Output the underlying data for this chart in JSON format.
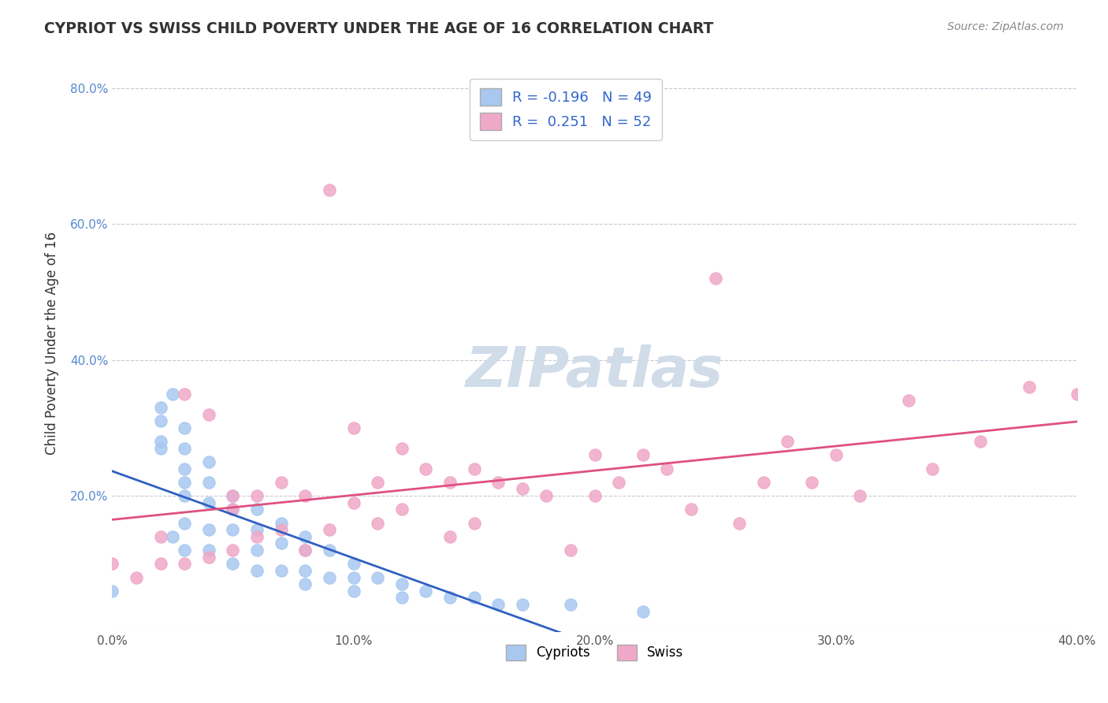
{
  "title": "CYPRIOT VS SWISS CHILD POVERTY UNDER THE AGE OF 16 CORRELATION CHART",
  "source": "Source: ZipAtlas.com",
  "xlabel": "",
  "ylabel": "Child Poverty Under the Age of 16",
  "xlim": [
    0.0,
    0.4
  ],
  "ylim": [
    0.0,
    0.85
  ],
  "x_ticks": [
    0.0,
    0.1,
    0.2,
    0.3,
    0.4
  ],
  "x_tick_labels": [
    "0.0%",
    "10.0%",
    "20.0%",
    "30.0%",
    "40.0%"
  ],
  "y_ticks": [
    0.0,
    0.2,
    0.4,
    0.6,
    0.8
  ],
  "y_tick_labels": [
    "",
    "20.0%",
    "40.0%",
    "60.0%",
    "80.0%"
  ],
  "r_cypriot": -0.196,
  "n_cypriot": 49,
  "r_swiss": 0.251,
  "n_swiss": 52,
  "cypriot_color": "#a8c8f0",
  "swiss_color": "#f0a8c8",
  "cypriot_line_color": "#3060c0",
  "swiss_line_color": "#e05080",
  "background_color": "#ffffff",
  "grid_color": "#c8c8d8",
  "watermark_color": "#d0dce8",
  "cypriot_x": [
    0.0,
    0.02,
    0.02,
    0.02,
    0.02,
    0.025,
    0.025,
    0.03,
    0.03,
    0.03,
    0.03,
    0.03,
    0.03,
    0.03,
    0.04,
    0.04,
    0.04,
    0.04,
    0.04,
    0.05,
    0.05,
    0.05,
    0.05,
    0.06,
    0.06,
    0.06,
    0.06,
    0.07,
    0.07,
    0.07,
    0.08,
    0.08,
    0.08,
    0.08,
    0.09,
    0.09,
    0.1,
    0.1,
    0.1,
    0.11,
    0.12,
    0.12,
    0.13,
    0.14,
    0.15,
    0.16,
    0.17,
    0.19,
    0.22
  ],
  "cypriot_y": [
    0.06,
    0.33,
    0.31,
    0.28,
    0.27,
    0.35,
    0.14,
    0.3,
    0.27,
    0.24,
    0.22,
    0.2,
    0.16,
    0.12,
    0.25,
    0.22,
    0.19,
    0.15,
    0.12,
    0.2,
    0.18,
    0.15,
    0.1,
    0.18,
    0.15,
    0.12,
    0.09,
    0.16,
    0.13,
    0.09,
    0.14,
    0.12,
    0.09,
    0.07,
    0.12,
    0.08,
    0.1,
    0.08,
    0.06,
    0.08,
    0.07,
    0.05,
    0.06,
    0.05,
    0.05,
    0.04,
    0.04,
    0.04,
    0.03
  ],
  "swiss_x": [
    0.0,
    0.01,
    0.02,
    0.02,
    0.03,
    0.03,
    0.04,
    0.04,
    0.05,
    0.05,
    0.05,
    0.06,
    0.06,
    0.07,
    0.07,
    0.08,
    0.08,
    0.09,
    0.09,
    0.1,
    0.1,
    0.11,
    0.11,
    0.12,
    0.12,
    0.13,
    0.14,
    0.14,
    0.15,
    0.15,
    0.16,
    0.17,
    0.18,
    0.19,
    0.2,
    0.2,
    0.21,
    0.22,
    0.23,
    0.24,
    0.25,
    0.26,
    0.27,
    0.28,
    0.29,
    0.3,
    0.31,
    0.33,
    0.34,
    0.36,
    0.38,
    0.4
  ],
  "swiss_y": [
    0.1,
    0.08,
    0.14,
    0.1,
    0.35,
    0.1,
    0.32,
    0.11,
    0.2,
    0.18,
    0.12,
    0.2,
    0.14,
    0.22,
    0.15,
    0.2,
    0.12,
    0.65,
    0.15,
    0.3,
    0.19,
    0.22,
    0.16,
    0.27,
    0.18,
    0.24,
    0.22,
    0.14,
    0.24,
    0.16,
    0.22,
    0.21,
    0.2,
    0.12,
    0.26,
    0.2,
    0.22,
    0.26,
    0.24,
    0.18,
    0.52,
    0.16,
    0.22,
    0.28,
    0.22,
    0.26,
    0.2,
    0.34,
    0.24,
    0.28,
    0.36,
    0.35
  ]
}
